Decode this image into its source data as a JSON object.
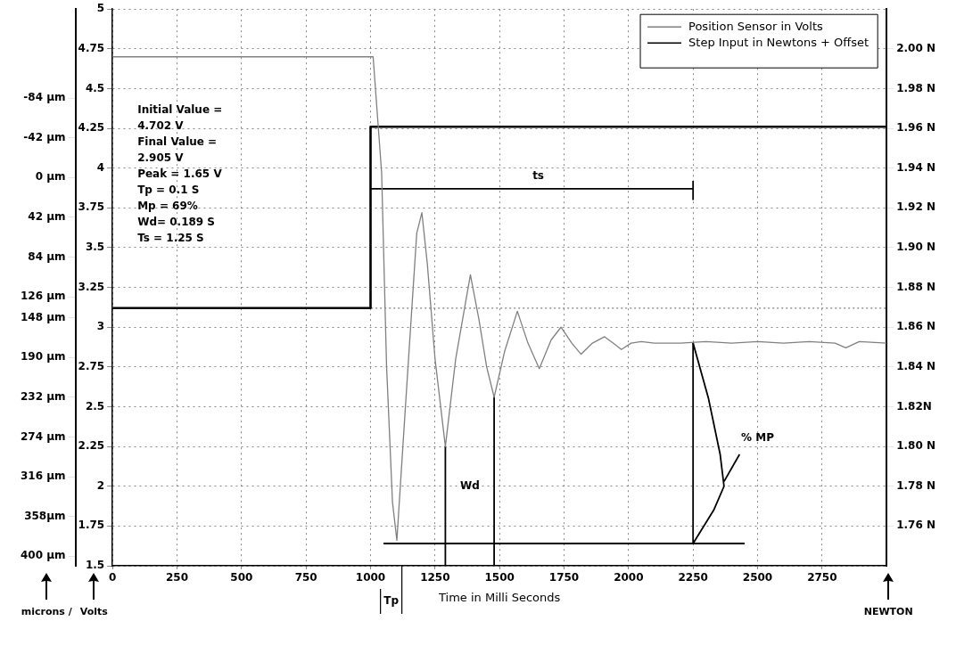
{
  "chart_data": {
    "type": "line",
    "xlabel": "Time in Milli Seconds",
    "ylabel": "Volts",
    "y2label": "NEWTON",
    "y3label": "microns /",
    "xlim": [
      0,
      3000
    ],
    "xticks": [
      0,
      250,
      500,
      750,
      1000,
      1250,
      1500,
      1750,
      2000,
      2250,
      2500,
      2750
    ],
    "ylim": [
      1.5,
      5
    ],
    "yticks": [
      1.5,
      1.75,
      2,
      2.25,
      2.5,
      2.75,
      3,
      3.25,
      3.5,
      3.75,
      4,
      4.25,
      4.5,
      4.75,
      5
    ],
    "y2lim": [
      1.74,
      2.02
    ],
    "y2ticks": [
      {
        "value": 1.76,
        "label": "1.76 N"
      },
      {
        "value": 1.78,
        "label": "1.78 N"
      },
      {
        "value": 1.8,
        "label": "1.80 N"
      },
      {
        "value": 1.82,
        "label": "1.82N"
      },
      {
        "value": 1.84,
        "label": "1.84 N"
      },
      {
        "value": 1.86,
        "label": "1.86 N"
      },
      {
        "value": 1.88,
        "label": "1.88 N"
      },
      {
        "value": 1.9,
        "label": "1.90 N"
      },
      {
        "value": 1.92,
        "label": "1.92 N"
      },
      {
        "value": 1.94,
        "label": "1.94 N"
      },
      {
        "value": 1.96,
        "label": "1.96 N"
      },
      {
        "value": 1.98,
        "label": "1.98 N"
      },
      {
        "value": 2,
        "label": "2.00 N"
      }
    ],
    "y3lim": [
      410,
      -178
    ],
    "y3ticks": [
      {
        "value": 400,
        "label": "400 µm"
      },
      {
        "value": 358,
        "label": "358µm"
      },
      {
        "value": 316,
        "label": "316 µm"
      },
      {
        "value": 274,
        "label": "274 µm"
      },
      {
        "value": 232,
        "label": "232 µm"
      },
      {
        "value": 190,
        "label": "190 µm"
      },
      {
        "value": 148,
        "label": "148 µm"
      },
      {
        "value": 126,
        "label": "126 µm"
      },
      {
        "value": 84,
        "label": "84 µm"
      },
      {
        "value": 42,
        "label": "42 µm"
      },
      {
        "value": 0,
        "label": "0 µm"
      },
      {
        "value": -42,
        "label": "-42 µm"
      },
      {
        "value": -84,
        "label": "-84 µm"
      }
    ],
    "grid": true,
    "legend": "top right",
    "series": [
      {
        "name": "Position Sensor in Volts",
        "color": "#808080",
        "x": [
          0,
          1010,
          1043,
          1062,
          1085,
          1102,
          1134,
          1179,
          1199,
          1220,
          1250,
          1290,
          1330,
          1387,
          1420,
          1450,
          1479,
          1520,
          1569,
          1610,
          1654,
          1700,
          1738,
          1780,
          1816,
          1860,
          1907,
          1940,
          1972,
          2010,
          2049,
          2100,
          2200,
          2300,
          2400,
          2500,
          2600,
          2700,
          2800,
          2842,
          2894,
          3000
        ],
        "values": [
          4.7,
          4.7,
          3.97,
          2.76,
          1.9,
          1.66,
          2.47,
          3.59,
          3.72,
          3.4,
          2.8,
          2.25,
          2.8,
          3.33,
          3.05,
          2.75,
          2.56,
          2.85,
          3.1,
          2.9,
          2.74,
          2.92,
          3,
          2.9,
          2.83,
          2.9,
          2.94,
          2.9,
          2.86,
          2.9,
          2.91,
          2.9,
          2.9,
          2.91,
          2.9,
          2.91,
          2.9,
          2.91,
          2.9,
          2.87,
          2.91,
          2.9
        ]
      },
      {
        "name": "Step Input in Newtons + Offset",
        "color": "#000000",
        "x": [
          0,
          1000,
          1000,
          3000
        ],
        "values": [
          3.12,
          3.12,
          4.26,
          4.26
        ]
      },
      {
        "color": "#000000",
        "x": [
          1000,
          2250
        ],
        "values": [
          3.87,
          3.87
        ]
      },
      {
        "color": "#000000",
        "x": [
          2250,
          2250
        ],
        "values": [
          3.8,
          3.92
        ]
      },
      {
        "color": "#000000",
        "x": [
          1050,
          2450
        ],
        "values": [
          1.64,
          1.64
        ]
      },
      {
        "color": "#000000",
        "x": [
          1290,
          1290
        ],
        "values": [
          2.25,
          1.5
        ]
      },
      {
        "color": "#000000",
        "x": [
          1479,
          1479
        ],
        "values": [
          2.56,
          1.5
        ]
      },
      {
        "color": "#000000",
        "x": [
          2250,
          2250
        ],
        "values": [
          2.9,
          1.64
        ]
      },
      {
        "color": "#000000",
        "x": [
          2250,
          2310,
          2355,
          2370,
          2330,
          2250
        ],
        "values": [
          2.9,
          2.55,
          2.2,
          2.0,
          1.85,
          1.64
        ]
      },
      {
        "color": "#000000",
        "x": [
          2370,
          2430
        ],
        "values": [
          2.03,
          2.2
        ]
      }
    ],
    "ref_lines": [
      {
        "axis": "y",
        "value": 3.12,
        "color": "#808080",
        "line_style": "dotted"
      }
    ],
    "annotations": [
      "Initial Value =",
      "4.702 V",
      "Final Value =",
      "2.905 V",
      "Peak = 1.65 V",
      "Tp = 0.1 S",
      "Mp = 69%",
      "Wd= 0.189 S",
      "Ts = 1.25 S",
      "ts",
      "Wd",
      "% MP",
      "Tp"
    ]
  }
}
